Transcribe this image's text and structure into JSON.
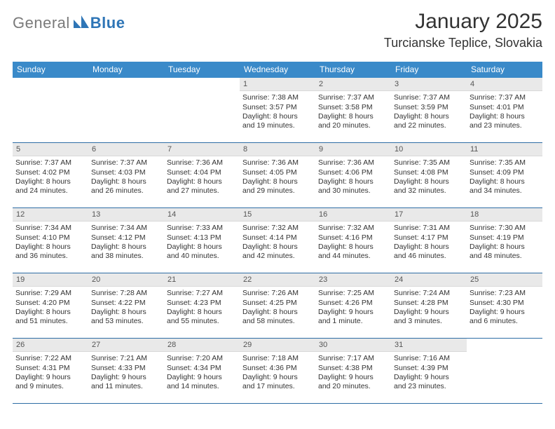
{
  "logo": {
    "textA": "General",
    "textB": "Blue"
  },
  "title": "January 2025",
  "location": "Turcianske Teplice, Slovakia",
  "colors": {
    "headerBg": "#3a8ac9",
    "headerText": "#ffffff",
    "weekBorder": "#2e6da5",
    "dayBarBg": "#e9e9e9",
    "bodyText": "#333333",
    "logoGray": "#7a7a7a",
    "logoBlue": "#2e75b6"
  },
  "weekdays": [
    "Sunday",
    "Monday",
    "Tuesday",
    "Wednesday",
    "Thursday",
    "Friday",
    "Saturday"
  ],
  "weeks": [
    [
      null,
      null,
      null,
      {
        "n": "1",
        "sr": "Sunrise: 7:38 AM",
        "ss": "Sunset: 3:57 PM",
        "d1": "Daylight: 8 hours",
        "d2": "and 19 minutes."
      },
      {
        "n": "2",
        "sr": "Sunrise: 7:37 AM",
        "ss": "Sunset: 3:58 PM",
        "d1": "Daylight: 8 hours",
        "d2": "and 20 minutes."
      },
      {
        "n": "3",
        "sr": "Sunrise: 7:37 AM",
        "ss": "Sunset: 3:59 PM",
        "d1": "Daylight: 8 hours",
        "d2": "and 22 minutes."
      },
      {
        "n": "4",
        "sr": "Sunrise: 7:37 AM",
        "ss": "Sunset: 4:01 PM",
        "d1": "Daylight: 8 hours",
        "d2": "and 23 minutes."
      }
    ],
    [
      {
        "n": "5",
        "sr": "Sunrise: 7:37 AM",
        "ss": "Sunset: 4:02 PM",
        "d1": "Daylight: 8 hours",
        "d2": "and 24 minutes."
      },
      {
        "n": "6",
        "sr": "Sunrise: 7:37 AM",
        "ss": "Sunset: 4:03 PM",
        "d1": "Daylight: 8 hours",
        "d2": "and 26 minutes."
      },
      {
        "n": "7",
        "sr": "Sunrise: 7:36 AM",
        "ss": "Sunset: 4:04 PM",
        "d1": "Daylight: 8 hours",
        "d2": "and 27 minutes."
      },
      {
        "n": "8",
        "sr": "Sunrise: 7:36 AM",
        "ss": "Sunset: 4:05 PM",
        "d1": "Daylight: 8 hours",
        "d2": "and 29 minutes."
      },
      {
        "n": "9",
        "sr": "Sunrise: 7:36 AM",
        "ss": "Sunset: 4:06 PM",
        "d1": "Daylight: 8 hours",
        "d2": "and 30 minutes."
      },
      {
        "n": "10",
        "sr": "Sunrise: 7:35 AM",
        "ss": "Sunset: 4:08 PM",
        "d1": "Daylight: 8 hours",
        "d2": "and 32 minutes."
      },
      {
        "n": "11",
        "sr": "Sunrise: 7:35 AM",
        "ss": "Sunset: 4:09 PM",
        "d1": "Daylight: 8 hours",
        "d2": "and 34 minutes."
      }
    ],
    [
      {
        "n": "12",
        "sr": "Sunrise: 7:34 AM",
        "ss": "Sunset: 4:10 PM",
        "d1": "Daylight: 8 hours",
        "d2": "and 36 minutes."
      },
      {
        "n": "13",
        "sr": "Sunrise: 7:34 AM",
        "ss": "Sunset: 4:12 PM",
        "d1": "Daylight: 8 hours",
        "d2": "and 38 minutes."
      },
      {
        "n": "14",
        "sr": "Sunrise: 7:33 AM",
        "ss": "Sunset: 4:13 PM",
        "d1": "Daylight: 8 hours",
        "d2": "and 40 minutes."
      },
      {
        "n": "15",
        "sr": "Sunrise: 7:32 AM",
        "ss": "Sunset: 4:14 PM",
        "d1": "Daylight: 8 hours",
        "d2": "and 42 minutes."
      },
      {
        "n": "16",
        "sr": "Sunrise: 7:32 AM",
        "ss": "Sunset: 4:16 PM",
        "d1": "Daylight: 8 hours",
        "d2": "and 44 minutes."
      },
      {
        "n": "17",
        "sr": "Sunrise: 7:31 AM",
        "ss": "Sunset: 4:17 PM",
        "d1": "Daylight: 8 hours",
        "d2": "and 46 minutes."
      },
      {
        "n": "18",
        "sr": "Sunrise: 7:30 AM",
        "ss": "Sunset: 4:19 PM",
        "d1": "Daylight: 8 hours",
        "d2": "and 48 minutes."
      }
    ],
    [
      {
        "n": "19",
        "sr": "Sunrise: 7:29 AM",
        "ss": "Sunset: 4:20 PM",
        "d1": "Daylight: 8 hours",
        "d2": "and 51 minutes."
      },
      {
        "n": "20",
        "sr": "Sunrise: 7:28 AM",
        "ss": "Sunset: 4:22 PM",
        "d1": "Daylight: 8 hours",
        "d2": "and 53 minutes."
      },
      {
        "n": "21",
        "sr": "Sunrise: 7:27 AM",
        "ss": "Sunset: 4:23 PM",
        "d1": "Daylight: 8 hours",
        "d2": "and 55 minutes."
      },
      {
        "n": "22",
        "sr": "Sunrise: 7:26 AM",
        "ss": "Sunset: 4:25 PM",
        "d1": "Daylight: 8 hours",
        "d2": "and 58 minutes."
      },
      {
        "n": "23",
        "sr": "Sunrise: 7:25 AM",
        "ss": "Sunset: 4:26 PM",
        "d1": "Daylight: 9 hours",
        "d2": "and 1 minute."
      },
      {
        "n": "24",
        "sr": "Sunrise: 7:24 AM",
        "ss": "Sunset: 4:28 PM",
        "d1": "Daylight: 9 hours",
        "d2": "and 3 minutes."
      },
      {
        "n": "25",
        "sr": "Sunrise: 7:23 AM",
        "ss": "Sunset: 4:30 PM",
        "d1": "Daylight: 9 hours",
        "d2": "and 6 minutes."
      }
    ],
    [
      {
        "n": "26",
        "sr": "Sunrise: 7:22 AM",
        "ss": "Sunset: 4:31 PM",
        "d1": "Daylight: 9 hours",
        "d2": "and 9 minutes."
      },
      {
        "n": "27",
        "sr": "Sunrise: 7:21 AM",
        "ss": "Sunset: 4:33 PM",
        "d1": "Daylight: 9 hours",
        "d2": "and 11 minutes."
      },
      {
        "n": "28",
        "sr": "Sunrise: 7:20 AM",
        "ss": "Sunset: 4:34 PM",
        "d1": "Daylight: 9 hours",
        "d2": "and 14 minutes."
      },
      {
        "n": "29",
        "sr": "Sunrise: 7:18 AM",
        "ss": "Sunset: 4:36 PM",
        "d1": "Daylight: 9 hours",
        "d2": "and 17 minutes."
      },
      {
        "n": "30",
        "sr": "Sunrise: 7:17 AM",
        "ss": "Sunset: 4:38 PM",
        "d1": "Daylight: 9 hours",
        "d2": "and 20 minutes."
      },
      {
        "n": "31",
        "sr": "Sunrise: 7:16 AM",
        "ss": "Sunset: 4:39 PM",
        "d1": "Daylight: 9 hours",
        "d2": "and 23 minutes."
      },
      null
    ]
  ]
}
